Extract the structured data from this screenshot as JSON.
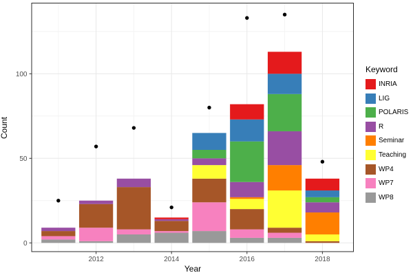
{
  "figure": {
    "background": "#ffffff",
    "panel_border_color": "#2b2b2b",
    "grid_major_color": "#e8e8e8",
    "grid_minor_color": "#f4f4f4",
    "tick_color": "#333333",
    "tick_label_color": "#4d4d4d"
  },
  "chart_data": {
    "type": "bar",
    "stacked": true,
    "title": "",
    "xlabel": "Year",
    "ylabel": "Count",
    "categories": [
      2011,
      2012,
      2013,
      2014,
      2015,
      2016,
      2017,
      2018
    ],
    "x_ticks": [
      2012,
      2014,
      2016,
      2018
    ],
    "y_ticks": [
      0,
      50,
      100
    ],
    "y_minor_gridlines": [
      25,
      75,
      125
    ],
    "ylim": [
      0,
      141
    ],
    "grid": true,
    "legend": {
      "title": "Keyword",
      "position": "right"
    },
    "series": [
      {
        "name": "INRIA",
        "color": "#E41A1C",
        "values": [
          0,
          0,
          0,
          1,
          0,
          9,
          13,
          7
        ]
      },
      {
        "name": "LIG",
        "color": "#377EB8",
        "values": [
          0,
          0,
          0,
          0,
          10,
          13,
          12,
          4
        ]
      },
      {
        "name": "POLARIS",
        "color": "#4DAF4A",
        "values": [
          0,
          0,
          0,
          0,
          5,
          24,
          22,
          3
        ]
      },
      {
        "name": "R",
        "color": "#984EA3",
        "values": [
          2,
          2,
          5,
          1,
          4,
          9,
          20,
          6
        ]
      },
      {
        "name": "Seminar",
        "color": "#FF7F00",
        "values": [
          0,
          0,
          0,
          0,
          0,
          1,
          15,
          13
        ]
      },
      {
        "name": "Teaching",
        "color": "#FFFF33",
        "values": [
          0,
          0,
          0,
          0,
          8,
          6,
          22,
          4
        ]
      },
      {
        "name": "WP4",
        "color": "#A65628",
        "values": [
          3,
          14,
          25,
          6,
          14,
          12,
          3,
          1
        ]
      },
      {
        "name": "WP7",
        "color": "#F781BF",
        "values": [
          2,
          8,
          3,
          1,
          17,
          5,
          3,
          0
        ]
      },
      {
        "name": "WP8",
        "color": "#999999",
        "values": [
          2,
          1,
          5,
          6,
          7,
          3,
          3,
          0
        ]
      }
    ],
    "stack_order_bottom_to_top": [
      "WP8",
      "WP7",
      "WP4",
      "Teaching",
      "Seminar",
      "R",
      "POLARIS",
      "LIG",
      "INRIA"
    ],
    "points_overlay": {
      "shape": "circle",
      "color": "#000000",
      "values": [
        25,
        57,
        68,
        21,
        80,
        133,
        135,
        48
      ]
    }
  }
}
